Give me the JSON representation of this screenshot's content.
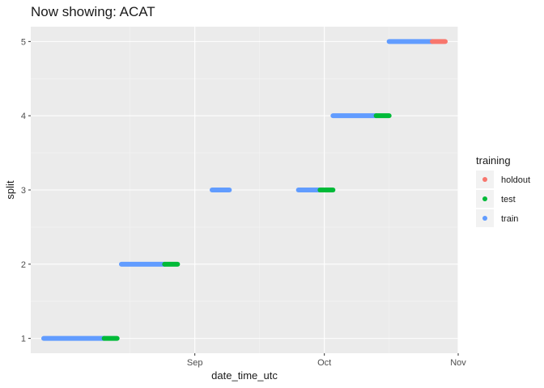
{
  "chart_data": {
    "type": "scatter",
    "title": "Now showing: ACAT",
    "xlabel": "date_time_utc",
    "ylabel": "split",
    "x_ticks": [
      {
        "label": "Sep",
        "value": "2023-09-01"
      },
      {
        "label": "Oct",
        "value": "2023-10-01"
      },
      {
        "label": "Nov",
        "value": "2023-11-01"
      }
    ],
    "y_ticks": [
      1,
      2,
      3,
      4,
      5
    ],
    "xlim": [
      "2023-07-25",
      "2023-11-01"
    ],
    "ylim": [
      0.8,
      5.2
    ],
    "grid": true,
    "legend": {
      "title": "training",
      "position": "right",
      "entries": [
        {
          "name": "holdout",
          "color": "#F8766D"
        },
        {
          "name": "test",
          "color": "#00BA38"
        },
        {
          "name": "train",
          "color": "#619CFF"
        }
      ]
    },
    "series": [
      {
        "name": "train",
        "color": "#619CFF",
        "segments": [
          {
            "split": 1,
            "start": "2023-07-28",
            "end": "2023-08-11"
          },
          {
            "split": 2,
            "start": "2023-08-15",
            "end": "2023-08-25"
          },
          {
            "split": 3,
            "start": "2023-09-05",
            "end": "2023-09-09"
          },
          {
            "split": 3,
            "start": "2023-09-25",
            "end": "2023-09-30"
          },
          {
            "split": 4,
            "start": "2023-10-03",
            "end": "2023-10-13"
          },
          {
            "split": 5,
            "start": "2023-10-16",
            "end": "2023-10-26"
          }
        ]
      },
      {
        "name": "test",
        "color": "#00BA38",
        "segments": [
          {
            "split": 1,
            "start": "2023-08-11",
            "end": "2023-08-14"
          },
          {
            "split": 2,
            "start": "2023-08-25",
            "end": "2023-08-28"
          },
          {
            "split": 3,
            "start": "2023-09-30",
            "end": "2023-10-03"
          },
          {
            "split": 4,
            "start": "2023-10-13",
            "end": "2023-10-16"
          }
        ]
      },
      {
        "name": "holdout",
        "color": "#F8766D",
        "segments": [
          {
            "split": 5,
            "start": "2023-10-26",
            "end": "2023-10-29"
          }
        ]
      }
    ]
  }
}
